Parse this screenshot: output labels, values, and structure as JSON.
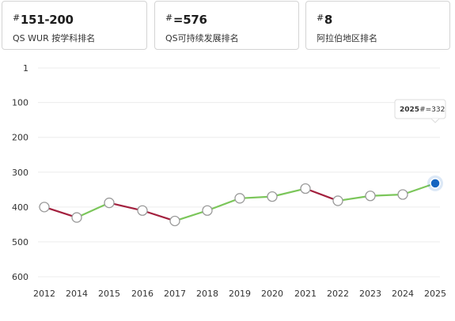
{
  "cards": [
    {
      "prefix": "#",
      "value": "151-200",
      "label": "QS WUR 按学科排名"
    },
    {
      "prefix": "#",
      "value": "=576",
      "label": "QS可持续发展排名"
    },
    {
      "prefix": "#",
      "value": "8",
      "label": "阿拉伯地区排名"
    }
  ],
  "colors": {
    "up": "#7bc65a",
    "down": "#a3203e",
    "highlight": "#1565c0",
    "grid": "#ececec"
  },
  "chart_data": {
    "type": "line",
    "title": "",
    "xlabel": "",
    "ylabel": "",
    "y_inverted": true,
    "ylim": [
      1,
      600
    ],
    "y_ticks": [
      1,
      100,
      200,
      300,
      400,
      500,
      600
    ],
    "x": [
      "2012",
      "2014",
      "2015",
      "2016",
      "2017",
      "2018",
      "2019",
      "2020",
      "2021",
      "2022",
      "2023",
      "2024",
      "2025"
    ],
    "series": [
      {
        "values": [
          400,
          430,
          388,
          410,
          440,
          410,
          375,
          370,
          347,
          382,
          368,
          364,
          332
        ]
      }
    ],
    "tooltip": {
      "year": "2025",
      "prefix": "#",
      "value": "=332"
    }
  }
}
